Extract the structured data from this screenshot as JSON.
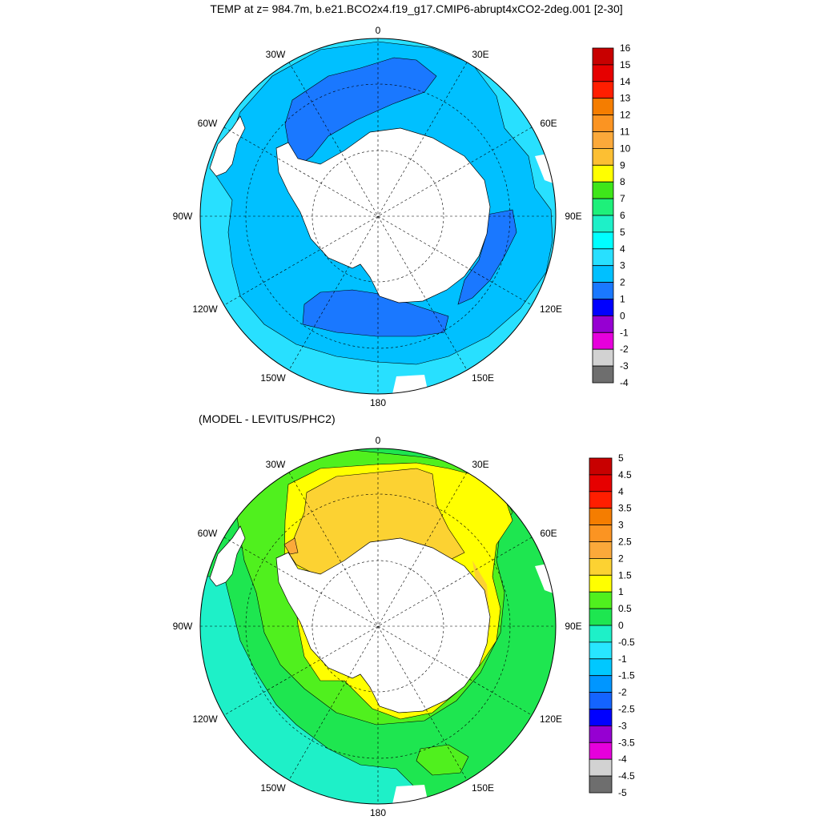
{
  "top_panel": {
    "title": "TEMP at z= 984.7m, b.e21.BCO2x4.f19_g17.CMIP6-abrupt4xCO2-2deg.001 [2-30]",
    "colorbar": {
      "labels": [
        "16",
        "15",
        "14",
        "13",
        "12",
        "11",
        "10",
        "9",
        "8",
        "7",
        "6",
        "5",
        "4",
        "3",
        "2",
        "1",
        "0",
        "-1",
        "-2",
        "-3",
        "-4"
      ],
      "colors": [
        "#c80000",
        "#e60000",
        "#ff1e00",
        "#f57d00",
        "#fb9422",
        "#fba93a",
        "#fcbf33",
        "#ffff00",
        "#3ee61a",
        "#1ef07a",
        "#1ef0c8",
        "#00ffff",
        "#28e0ff",
        "#00c0ff",
        "#1a78ff",
        "#0000ff",
        "#9600d2",
        "#e600dc",
        "#d2d2d2",
        "#6e6e6e"
      ]
    },
    "field_colors": {
      "ocean_3_4": "#28e0ff",
      "ocean_2_3": "#00c0ff",
      "ocean_1_2": "#1a78ff",
      "land": "#ffffff"
    }
  },
  "bottom_panel": {
    "title": "(MODEL - LEVITUS/PHC2)",
    "colorbar": {
      "labels": [
        "5",
        "4.5",
        "4",
        "3.5",
        "3",
        "2.5",
        "2",
        "1.5",
        "1",
        "0.5",
        "0",
        "-0.5",
        "-1",
        "-1.5",
        "-2",
        "-2.5",
        "-3",
        "-3.5",
        "-4",
        "-4.5",
        "-5"
      ],
      "colors": [
        "#c80000",
        "#e60000",
        "#ff1e00",
        "#f57d00",
        "#fb9422",
        "#fba93a",
        "#fcd232",
        "#ffff00",
        "#50f01e",
        "#1ee650",
        "#1ef0c8",
        "#28e6ff",
        "#00c8ff",
        "#0096ff",
        "#1464ff",
        "#0000ff",
        "#9600d2",
        "#e600dc",
        "#d2d2d2",
        "#6e6e6e"
      ]
    },
    "field_colors": {
      "neg_0_5_to_0": "#1ef0c8",
      "v0_to_0_5": "#1ee650",
      "v0_5_to_1": "#50f01e",
      "v1_to_1_5": "#ffff00",
      "v1_5_to_2": "#fcd232",
      "v2_to_2_5": "#fba93a",
      "land": "#ffffff"
    }
  },
  "map_labels": {
    "lon_0": "0",
    "lon_30e": "30E",
    "lon_60e": "60E",
    "lon_90e": "90E",
    "lon_120e": "120E",
    "lon_150e": "150E",
    "lon_180": "180",
    "lon_150w": "150W",
    "lon_120w": "120W",
    "lon_90w": "90W",
    "lon_60w": "60W",
    "lon_30w": "30W"
  }
}
